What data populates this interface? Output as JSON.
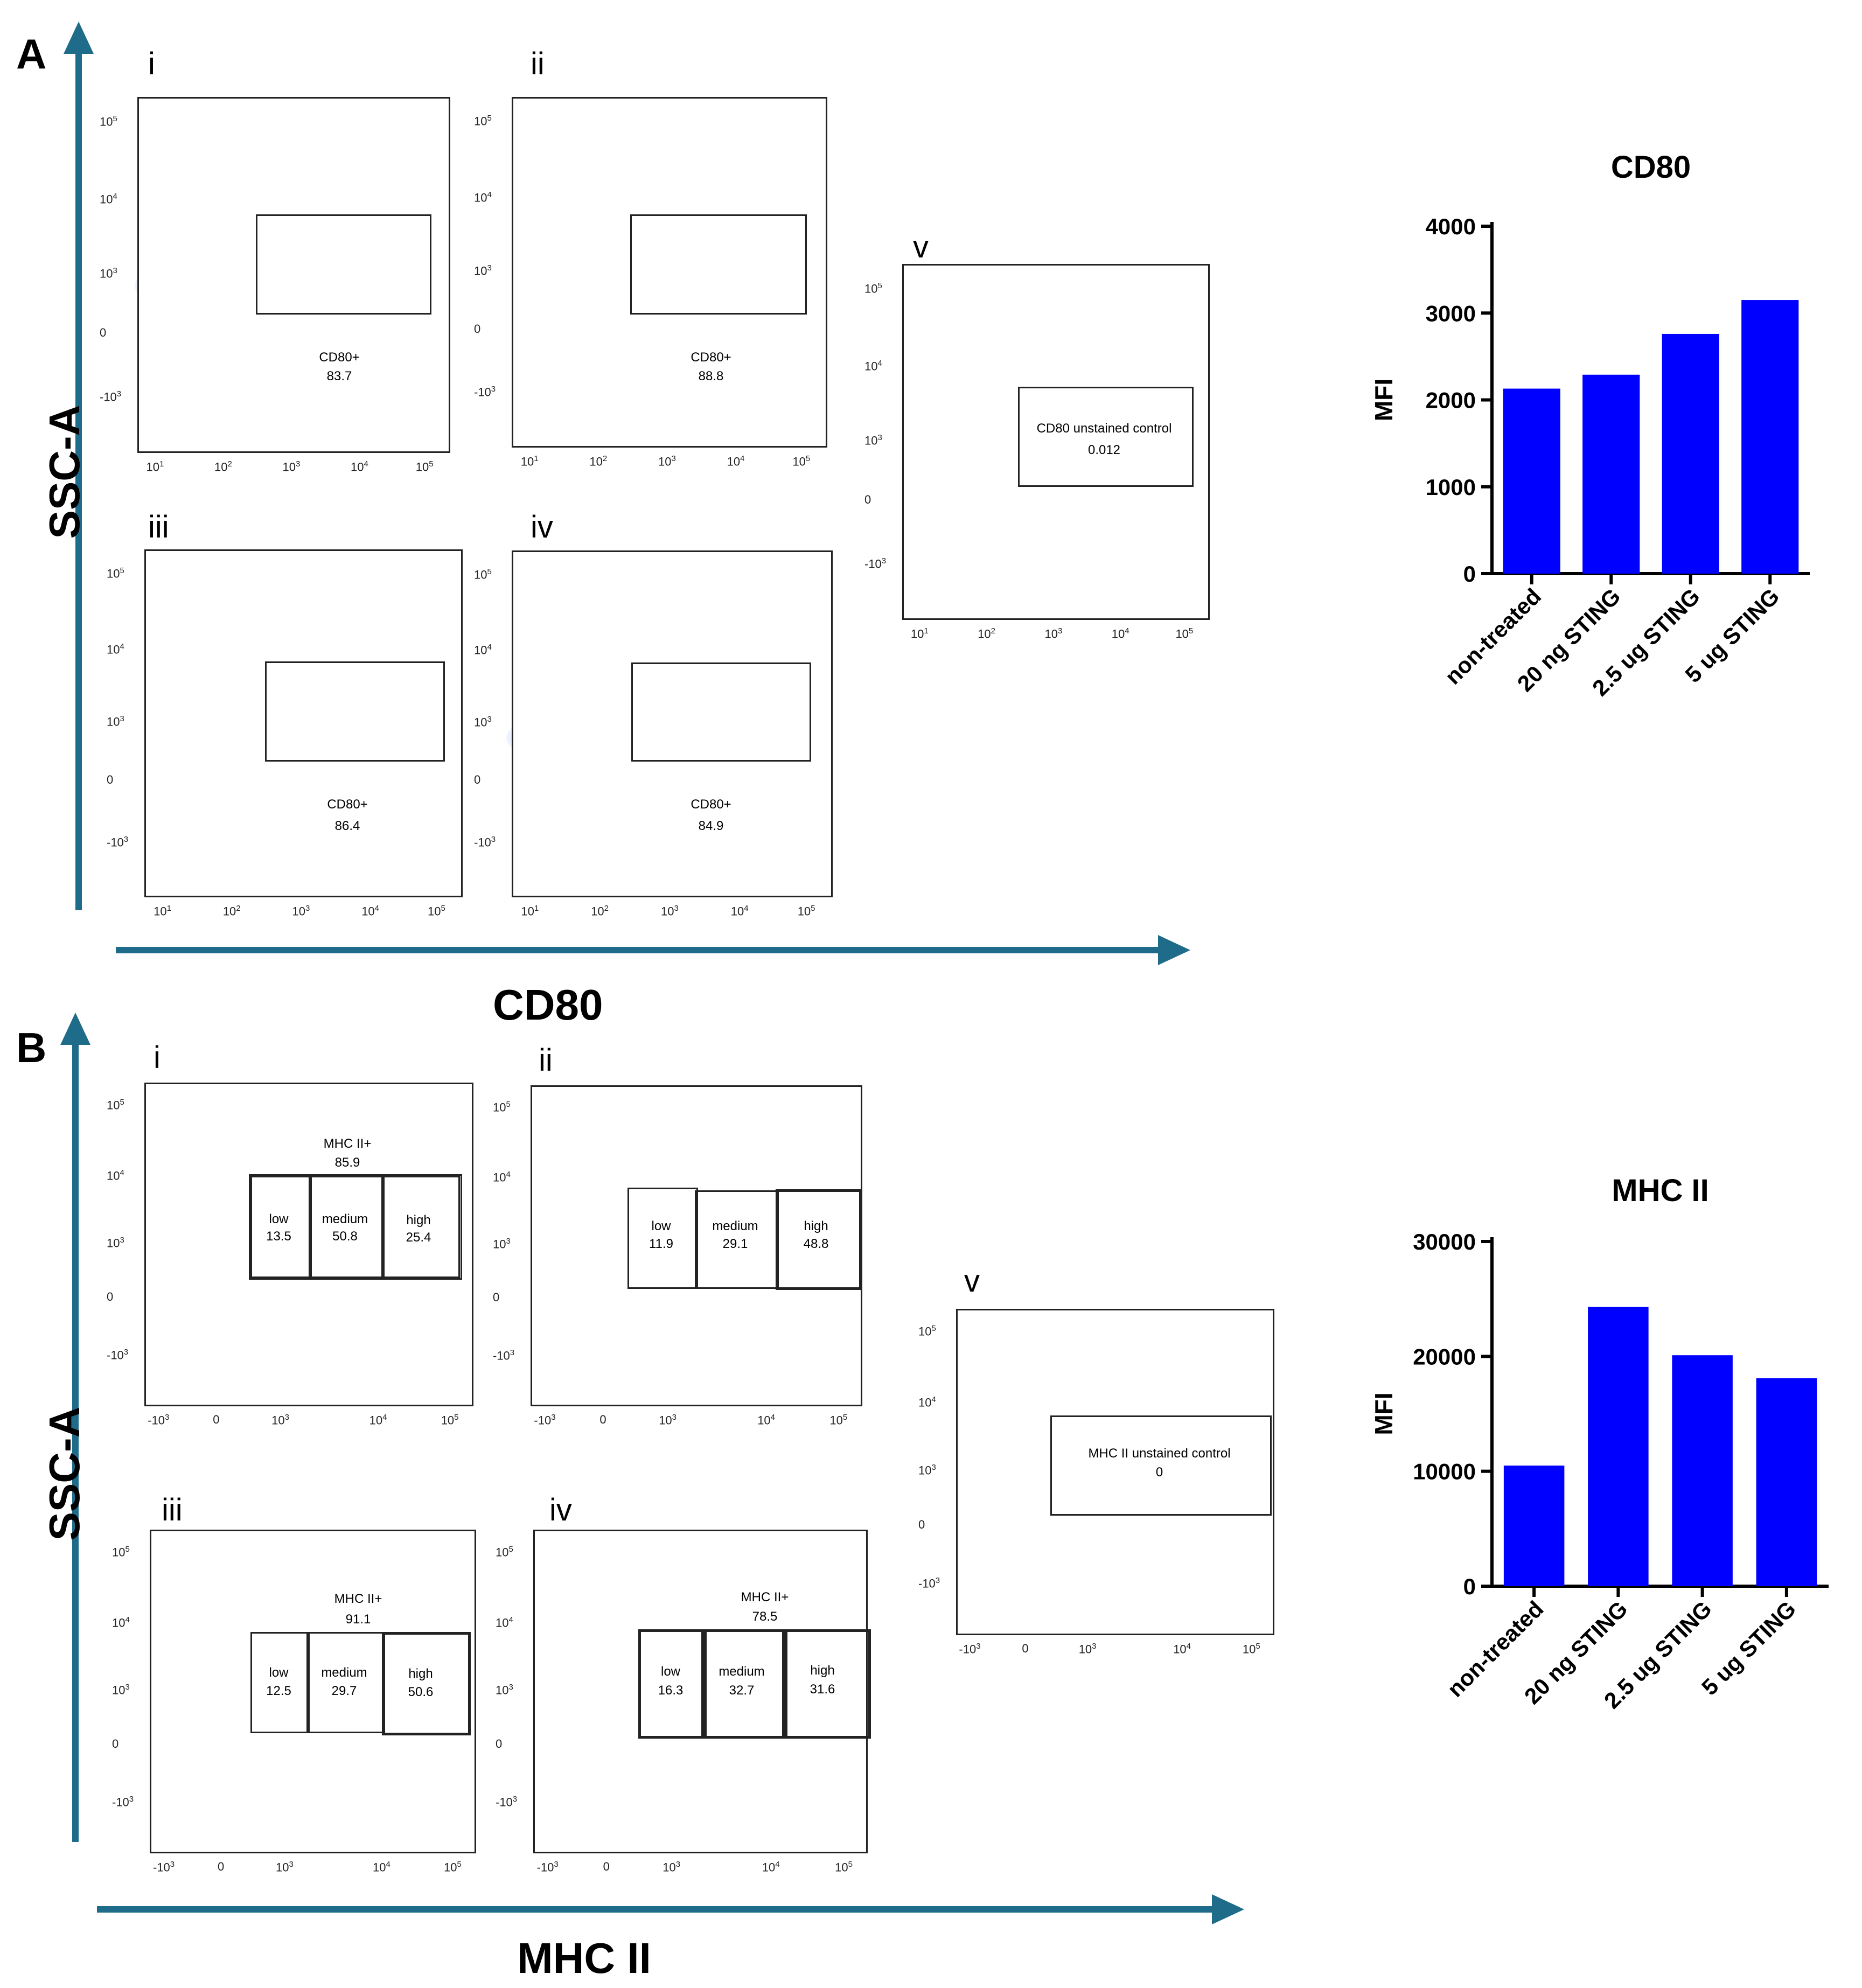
{
  "panels": {
    "A": {
      "letter": "A",
      "y_axis_label": "SSC-A",
      "x_axis_label": "CD80",
      "plots": [
        {
          "label": "i",
          "gate_name": "CD80+",
          "gate_value": "83.7"
        },
        {
          "label": "ii",
          "gate_name": "CD80+",
          "gate_value": "88.8"
        },
        {
          "label": "iii",
          "gate_name": "CD80+",
          "gate_value": "86.4"
        },
        {
          "label": "iv",
          "gate_name": "CD80+",
          "gate_value": "84.9"
        },
        {
          "label": "v",
          "gate_name": "CD80 unstained control",
          "gate_value": "0.012"
        }
      ],
      "y_ticks": [
        "10",
        "10",
        "10",
        "0",
        "-10"
      ],
      "y_tick_exp": [
        "5",
        "4",
        "3",
        "",
        "3"
      ],
      "x_ticks": [
        "10",
        "10",
        "10",
        "10",
        "10"
      ],
      "x_tick_exp": [
        "1",
        "2",
        "3",
        "4",
        "5"
      ]
    },
    "B": {
      "letter": "B",
      "y_axis_label": "SSC-A",
      "x_axis_label": "MHC II",
      "plots": [
        {
          "label": "i",
          "parent_gate": "MHC II+",
          "parent_value": "85.9",
          "low": "13.5",
          "medium": "50.8",
          "high": "25.4"
        },
        {
          "label": "ii",
          "parent_gate": "",
          "parent_value": "",
          "low": "11.9",
          "medium": "29.1",
          "high": "48.8"
        },
        {
          "label": "iii",
          "parent_gate": "MHC II+",
          "parent_value": "91.1",
          "low": "12.5",
          "medium": "29.7",
          "high": "50.6"
        },
        {
          "label": "iv",
          "parent_gate": "MHC II+",
          "parent_value": "78.5",
          "low": "16.3",
          "medium": "32.7",
          "high": "31.6"
        },
        {
          "label": "v",
          "control_name": "MHC II unstained control",
          "control_value": "0"
        }
      ],
      "subgate_names": {
        "low": "low",
        "medium": "medium",
        "high": "high"
      },
      "y_ticks": [
        "10",
        "10",
        "10",
        "0",
        "-10"
      ],
      "y_tick_exp": [
        "5",
        "4",
        "3",
        "",
        "3"
      ],
      "x_ticks": [
        "-10",
        "0",
        "10",
        "10",
        "10"
      ],
      "x_tick_exp": [
        "3",
        "",
        "3",
        "4",
        "5"
      ]
    }
  },
  "chart_data": [
    {
      "type": "bar",
      "title": "CD80",
      "ylabel": "MFI",
      "xlabel": "",
      "categories": [
        "non-treated",
        "20 ng STING",
        "2.5 ug STING",
        "5 ug STING"
      ],
      "values": [
        2130,
        2290,
        2760,
        3150
      ],
      "ylim": [
        0,
        4000
      ],
      "yticks": [
        0,
        1000,
        2000,
        3000,
        4000
      ],
      "bar_color": "#0000ff"
    },
    {
      "type": "bar",
      "title": "MHC II",
      "ylabel": "MFI",
      "xlabel": "",
      "categories": [
        "non-treated",
        "20 ng STING",
        "2.5 ug STING",
        "5 ug STING"
      ],
      "values": [
        10500,
        24300,
        20100,
        18100
      ],
      "ylim": [
        0,
        30000
      ],
      "yticks": [
        0,
        10000,
        20000,
        30000
      ],
      "bar_color": "#0000ff"
    }
  ]
}
